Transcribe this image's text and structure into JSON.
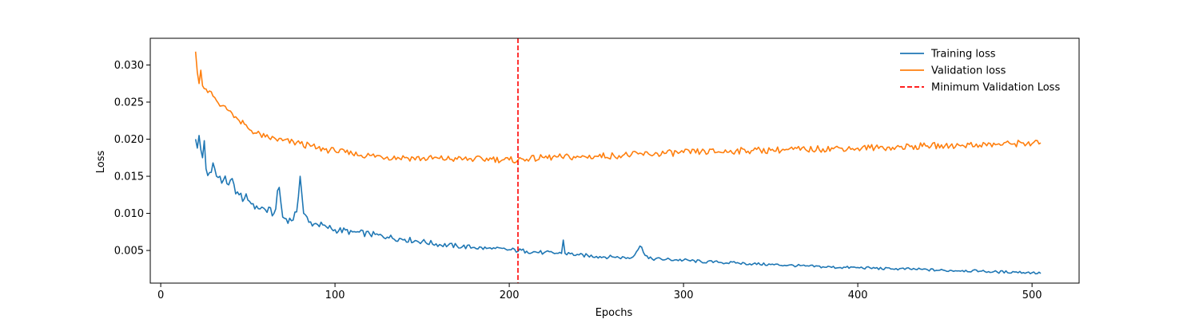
{
  "chart_data": {
    "type": "line",
    "title": "",
    "xlabel": "Epochs",
    "ylabel": "Loss",
    "xlim": [
      -6,
      527
    ],
    "ylim": [
      0.0006,
      0.0336
    ],
    "x_ticks": [
      0,
      100,
      200,
      300,
      400,
      500
    ],
    "y_ticks": [
      0.005,
      0.01,
      0.015,
      0.02,
      0.025,
      0.03
    ],
    "x_tick_labels": [
      "0",
      "100",
      "200",
      "300",
      "400",
      "500"
    ],
    "y_tick_labels": [
      "0.005",
      "0.010",
      "0.015",
      "0.020",
      "0.025",
      "0.030"
    ],
    "grid": false,
    "legend_position": "top-right",
    "x_start": 20,
    "x_end": 505,
    "series": [
      {
        "name": "Training loss",
        "color": "#1f77b4",
        "style": "solid",
        "x": [
          20,
          21,
          22,
          23,
          24,
          25,
          26,
          28,
          30,
          32,
          34,
          36,
          38,
          40,
          45,
          50,
          55,
          60,
          65,
          68,
          70,
          75,
          78,
          80,
          82,
          85,
          90,
          95,
          100,
          110,
          120,
          130,
          140,
          150,
          160,
          170,
          180,
          190,
          200,
          210,
          220,
          230,
          231,
          232,
          240,
          250,
          260,
          270,
          275,
          280,
          290,
          300,
          310,
          320,
          330,
          340,
          350,
          360,
          370,
          380,
          390,
          400,
          410,
          420,
          430,
          440,
          450,
          460,
          470,
          480,
          490,
          500,
          505
        ],
        "values": [
          0.02,
          0.0188,
          0.0205,
          0.0186,
          0.0175,
          0.0198,
          0.016,
          0.0155,
          0.0168,
          0.015,
          0.015,
          0.0145,
          0.014,
          0.0145,
          0.0125,
          0.0118,
          0.011,
          0.0105,
          0.01,
          0.0135,
          0.0095,
          0.009,
          0.0102,
          0.015,
          0.01,
          0.0088,
          0.0085,
          0.0082,
          0.0078,
          0.0075,
          0.0072,
          0.0068,
          0.0065,
          0.0062,
          0.0058,
          0.0056,
          0.0054,
          0.0052,
          0.0051,
          0.0049,
          0.0047,
          0.0046,
          0.0064,
          0.0046,
          0.0044,
          0.0042,
          0.0041,
          0.004,
          0.0056,
          0.0039,
          0.0038,
          0.0037,
          0.0035,
          0.0034,
          0.0033,
          0.0032,
          0.0031,
          0.003,
          0.0029,
          0.0028,
          0.0027,
          0.0027,
          0.0026,
          0.0025,
          0.0025,
          0.0024,
          0.0023,
          0.0023,
          0.0022,
          0.0021,
          0.0021,
          0.002,
          0.0019
        ]
      },
      {
        "name": "Validation loss",
        "color": "#ff7f0e",
        "style": "solid",
        "x": [
          20,
          21,
          22,
          23,
          24,
          25,
          28,
          30,
          32,
          35,
          38,
          40,
          45,
          50,
          55,
          60,
          70,
          80,
          90,
          100,
          110,
          120,
          130,
          140,
          150,
          160,
          170,
          180,
          190,
          200,
          205,
          210,
          220,
          230,
          240,
          250,
          260,
          270,
          280,
          290,
          300,
          310,
          320,
          330,
          340,
          350,
          360,
          370,
          380,
          390,
          400,
          410,
          420,
          430,
          440,
          450,
          460,
          470,
          480,
          490,
          495,
          500,
          505
        ],
        "values": [
          0.0318,
          0.029,
          0.0275,
          0.0293,
          0.0272,
          0.0268,
          0.0265,
          0.0258,
          0.0252,
          0.0245,
          0.024,
          0.0238,
          0.0225,
          0.0215,
          0.0208,
          0.0203,
          0.0198,
          0.0194,
          0.0188,
          0.0184,
          0.018,
          0.0178,
          0.0176,
          0.0175,
          0.0174,
          0.0174,
          0.0173,
          0.0173,
          0.0173,
          0.0172,
          0.0172,
          0.0173,
          0.0175,
          0.0176,
          0.0176,
          0.0177,
          0.0178,
          0.0179,
          0.018,
          0.0181,
          0.0182,
          0.0183,
          0.0183,
          0.0184,
          0.0185,
          0.0185,
          0.0186,
          0.0186,
          0.0187,
          0.0188,
          0.0188,
          0.0189,
          0.0189,
          0.019,
          0.0191,
          0.0191,
          0.0192,
          0.0192,
          0.0193,
          0.0194,
          0.0195,
          0.0194,
          0.0195
        ]
      }
    ],
    "vertical_line": {
      "name": "Minimum Validation Loss",
      "x": 205,
      "color": "#ff0000",
      "style": "dashed"
    },
    "legend": [
      "Training loss",
      "Validation loss",
      "Minimum Validation Loss"
    ]
  }
}
